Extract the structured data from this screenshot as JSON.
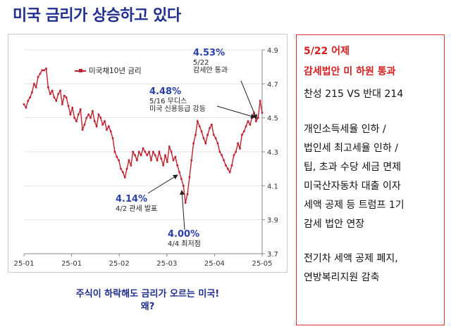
{
  "title": "미국 금리가 상승하고 있다",
  "chart_data": {
    "type": "line",
    "series": [
      {
        "name": "미국채10년 금리",
        "values": [
          4.58,
          4.56,
          4.6,
          4.62,
          4.65,
          4.7,
          4.68,
          4.74,
          4.76,
          4.78,
          4.78,
          4.79,
          4.68,
          4.64,
          4.66,
          4.62,
          4.6,
          4.64,
          4.66,
          4.58,
          4.63,
          4.62,
          4.57,
          4.52,
          4.56,
          4.5,
          4.48,
          4.52,
          4.55,
          4.43,
          4.46,
          4.5,
          4.52,
          4.5,
          4.54,
          4.48,
          4.45,
          4.52,
          4.5,
          4.46,
          4.48,
          4.43,
          4.45,
          4.42,
          4.38,
          4.3,
          4.27,
          4.25,
          4.2,
          4.18,
          4.15,
          4.2,
          4.25,
          4.22,
          4.3,
          4.28,
          4.25,
          4.3,
          4.28,
          4.32,
          4.3,
          4.28,
          4.3,
          4.25,
          4.3,
          4.28,
          4.25,
          4.3,
          4.26,
          4.22,
          4.28,
          4.24,
          4.33,
          4.3,
          4.25,
          4.27,
          4.22,
          4.18,
          4.14,
          4.1,
          4.0,
          4.05,
          4.15,
          4.25,
          4.35,
          4.4,
          4.48,
          4.45,
          4.42,
          4.38,
          4.35,
          4.4,
          4.44,
          4.46,
          4.4,
          4.38,
          4.35,
          4.3,
          4.28,
          4.25,
          4.22,
          4.2,
          4.18,
          4.22,
          4.28,
          4.3,
          4.35,
          4.32,
          4.4,
          4.42,
          4.45,
          4.48,
          4.46,
          4.5,
          4.53,
          4.48,
          4.5,
          4.6,
          4.53
        ],
        "color": "#c0202e"
      }
    ],
    "ylim": [
      3.7,
      4.9
    ],
    "yticks": [
      "4.9",
      "4.7",
      "4.5",
      "4.3",
      "4.1",
      "3.9",
      "3.7"
    ],
    "xtick_labels": [
      "25-01",
      "25-01",
      "25-02",
      "25-03",
      "25-04",
      "25-05"
    ],
    "xlabel": "",
    "ylabel": ""
  },
  "annotations": {
    "peak_value": "4.53%",
    "peak_note_1": "5/22",
    "peak_note_2": "감세안 통과",
    "moodys_value": "4.48%",
    "moodys_note_1": "5/16 무디스",
    "moodys_note_2": "미국 신용등급 강등",
    "tariff_value": "4.14%",
    "tariff_note": "4/2 관세 발표",
    "low_value": "4.00%",
    "low_note": "4/4 최저점"
  },
  "caption": {
    "line1": "주식이 하락해도 금리가 오르는 미국!",
    "line2": "왜?"
  },
  "panel": {
    "date": "5/22 어제",
    "heading": "감세법안 미 하원 통과",
    "vote": "찬성 215 VS 반대 214",
    "items": [
      "개인소득세율 인하 /",
      "법인세 최고세율 인하 /",
      "팁, 초과 수당 세금 면제",
      "미국산자동차 대출 이자",
      "세액 공제 등 트럼프 1기",
      "감세 법안 연장"
    ],
    "items2": [
      "전기차 세액 공제 폐지,",
      "연방복리지원 감축"
    ]
  }
}
